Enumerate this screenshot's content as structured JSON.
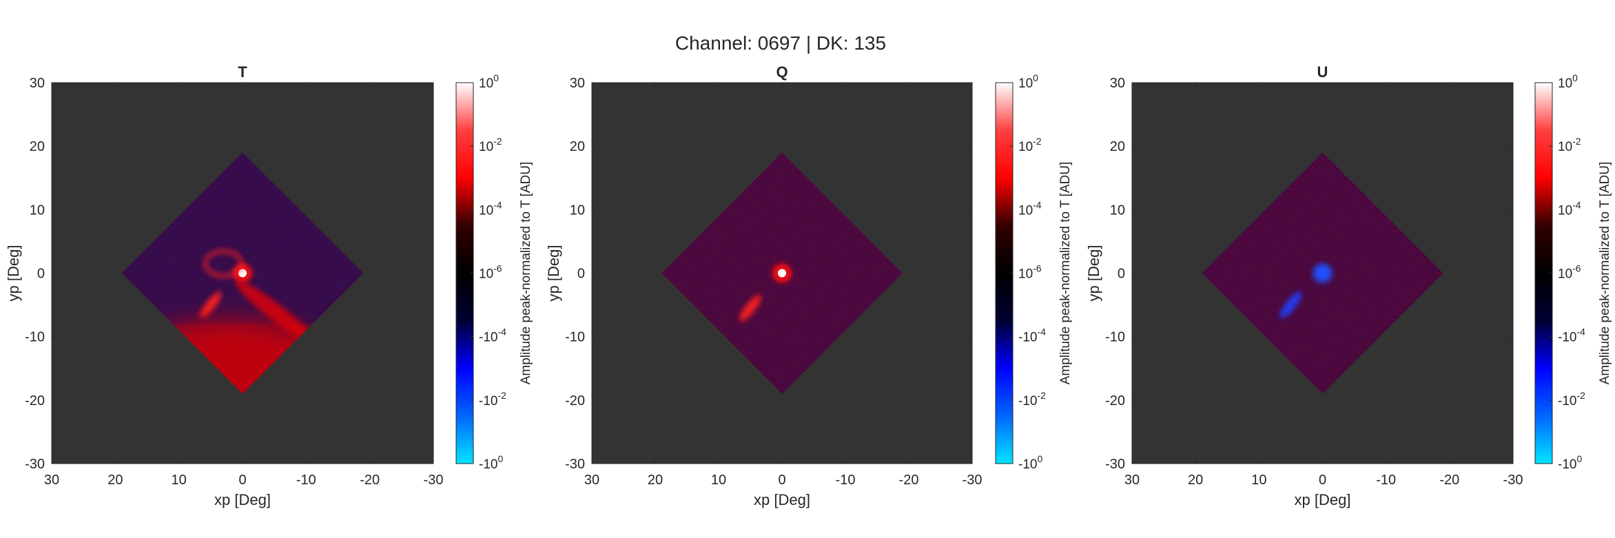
{
  "figure": {
    "title": "Channel: 0697 | DK: 135"
  },
  "colormap": {
    "stops": [
      "#00e5ff",
      "#0066ff",
      "#0000ff",
      "#000033",
      "#000000",
      "#330000",
      "#ff0000",
      "#ff4040",
      "#ffffff"
    ],
    "background": "#333333",
    "label": "Amplitude peak-normalized to T [ADU]",
    "ticks": [
      {
        "base": "10",
        "exp": "0",
        "sign": ""
      },
      {
        "base": "10",
        "exp": "-2",
        "sign": ""
      },
      {
        "base": "10",
        "exp": "-4",
        "sign": ""
      },
      {
        "base": "10",
        "exp": "-6",
        "sign": ""
      },
      {
        "base": "10",
        "exp": "-4",
        "sign": "-"
      },
      {
        "base": "10",
        "exp": "-2",
        "sign": "-"
      },
      {
        "base": "10",
        "exp": "0",
        "sign": "-"
      }
    ]
  },
  "chart_data": [
    {
      "type": "heatmap",
      "title": "T",
      "xlabel": "xp [Deg]",
      "ylabel": "yp [Deg]",
      "xlim": [
        30,
        -30
      ],
      "ylim": [
        -30,
        30
      ],
      "xticks": [
        30,
        20,
        10,
        0,
        -10,
        -20,
        -30
      ],
      "yticks": [
        30,
        20,
        10,
        0,
        -10,
        -20,
        -30
      ],
      "footprint": [
        [
          0,
          19
        ],
        [
          -19,
          0
        ],
        [
          0,
          -19
        ],
        [
          19,
          0
        ]
      ],
      "features": [
        {
          "kind": "peak",
          "x": 0,
          "y": 0,
          "color": "#ffffff"
        },
        {
          "kind": "streak",
          "x": 5,
          "y": -5,
          "color": "#ff2020"
        },
        {
          "kind": "sidelobe-band",
          "x": -5,
          "y": -6,
          "color": "#ff0000"
        },
        {
          "kind": "diffuse-bottom",
          "x": 2,
          "y": -15,
          "color": "#e00000"
        }
      ]
    },
    {
      "type": "heatmap",
      "title": "Q",
      "xlabel": "xp [Deg]",
      "ylabel": "yp [Deg]",
      "xlim": [
        30,
        -30
      ],
      "ylim": [
        -30,
        30
      ],
      "xticks": [
        30,
        20,
        10,
        0,
        -10,
        -20,
        -30
      ],
      "yticks": [
        30,
        20,
        10,
        0,
        -10,
        -20,
        -30
      ],
      "footprint": [
        [
          0,
          19
        ],
        [
          -19,
          0
        ],
        [
          0,
          -19
        ],
        [
          19,
          0
        ]
      ],
      "features": [
        {
          "kind": "peak",
          "x": 0,
          "y": 0,
          "color": "#ffffff"
        },
        {
          "kind": "streak",
          "x": 5,
          "y": -5.5,
          "color": "#ff2020"
        }
      ]
    },
    {
      "type": "heatmap",
      "title": "U",
      "xlabel": "xp [Deg]",
      "ylabel": "yp [Deg]",
      "xlim": [
        30,
        -30
      ],
      "ylim": [
        -30,
        30
      ],
      "xticks": [
        30,
        20,
        10,
        0,
        -10,
        -20,
        -30
      ],
      "yticks": [
        30,
        20,
        10,
        0,
        -10,
        -20,
        -30
      ],
      "footprint": [
        [
          0,
          19
        ],
        [
          -19,
          0
        ],
        [
          0,
          -19
        ],
        [
          19,
          0
        ]
      ],
      "features": [
        {
          "kind": "peak",
          "x": 0,
          "y": 0,
          "color": "#2050ff"
        },
        {
          "kind": "streak",
          "x": 5,
          "y": -5,
          "color": "#2040ff"
        }
      ]
    }
  ]
}
